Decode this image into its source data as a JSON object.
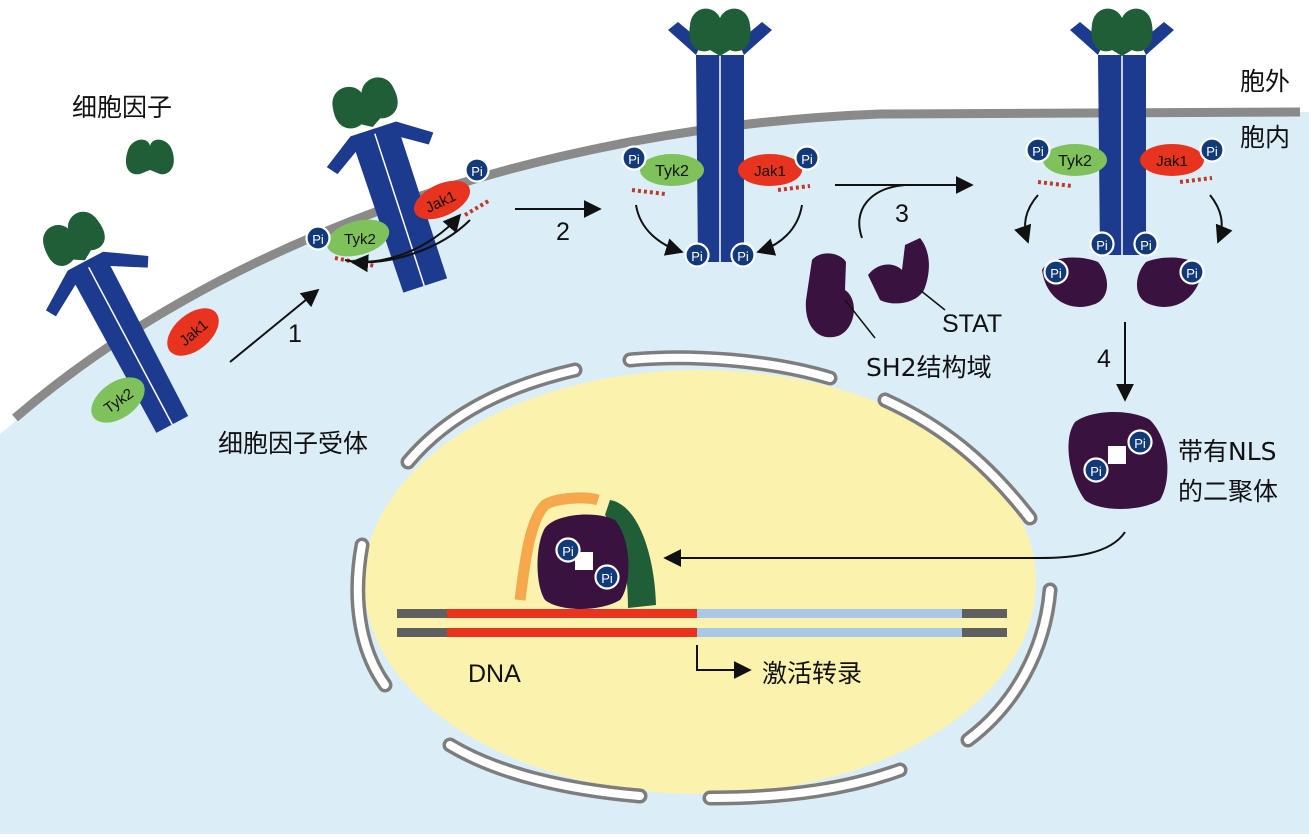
{
  "labels": {
    "cytokine": "细胞因子",
    "receptor": "细胞因子受体",
    "outside": "胞外",
    "inside": "胞内",
    "step1": "1",
    "step2": "2",
    "step3": "3",
    "step4": "4",
    "stat": "STAT",
    "sh2": "SH2结构域",
    "dimer_line1": "带有NLS",
    "dimer_line2": "的二聚体",
    "dna": "DNA",
    "transcription": "激活转录"
  },
  "kinases": {
    "tyk2": "Tyk2",
    "jak1": "Jak1",
    "pi": "Pi"
  },
  "colors": {
    "receptor": "#1c3a8e",
    "cytokine": "#1f5e36",
    "tyk2": "#7fc15a",
    "jak1": "#e8331e",
    "stat": "#3a1240",
    "membrane": "#8a8a8a",
    "cytoplasm": "#dbeef8",
    "nucleus": "#fbf2ae",
    "dna_active": "#e8331e",
    "dna_gene": "#a9c8e8"
  }
}
